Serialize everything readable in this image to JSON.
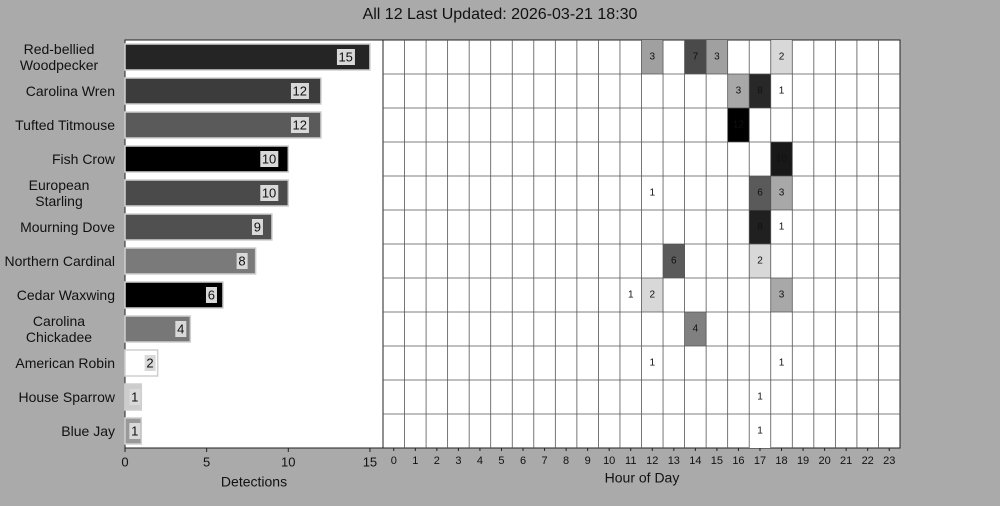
{
  "title": "All 12 Last Updated: 2026-03-21 18:30",
  "chart_data": [
    {
      "type": "hbar",
      "x_label": "Detections",
      "categories": [
        "Red-bellied Woodpecker",
        "Carolina Wren",
        "Tufted Titmouse",
        "Fish Crow",
        "European Starling",
        "Mourning Dove",
        "Northern Cardinal",
        "Cedar Waxwing",
        "Carolina Chickadee",
        "American Robin",
        "House Sparrow",
        "Blue Jay"
      ],
      "values": [
        15,
        12,
        12,
        10,
        10,
        9,
        8,
        6,
        4,
        2,
        1,
        1
      ],
      "colors": [
        "#252525",
        "#3c3c3c",
        "#5a5a5a",
        "#000000",
        "#4a4a4a",
        "#505050",
        "#7a7a7a",
        "#000000",
        "#777777",
        "#ffffff",
        "#cccccc",
        "#999999"
      ],
      "xlim": [
        0,
        15.8
      ],
      "xticks": [
        0,
        5,
        10,
        15
      ]
    },
    {
      "type": "heatmap",
      "x_label": "Hour of Day",
      "xticks": [
        0,
        1,
        2,
        3,
        4,
        5,
        6,
        7,
        8,
        9,
        10,
        11,
        12,
        13,
        14,
        15,
        16,
        17,
        18,
        19,
        20,
        21,
        22,
        23
      ],
      "highlighted_hour": 18,
      "rows": [
        [
          {
            "hour": 12,
            "value": 3,
            "color": "#a0a0a0"
          },
          {
            "hour": 14,
            "value": 7,
            "color": "#4a4a4a"
          },
          {
            "hour": 15,
            "value": 3,
            "color": "#a0a0a0"
          },
          {
            "hour": 18,
            "value": 2,
            "color": "#d8d8d8"
          }
        ],
        [
          {
            "hour": 16,
            "value": 3,
            "color": "#a8a8a8"
          },
          {
            "hour": 17,
            "value": 8,
            "color": "#282828"
          },
          {
            "hour": 18,
            "value": 1,
            "color": "#ffffff"
          }
        ],
        [
          {
            "hour": 16,
            "value": 12,
            "color": "#000000"
          }
        ],
        [
          {
            "hour": 18,
            "value": 10,
            "color": "#181818"
          }
        ],
        [
          {
            "hour": 12,
            "value": 1,
            "color": "#ffffff"
          },
          {
            "hour": 17,
            "value": 6,
            "color": "#5a5a5a"
          },
          {
            "hour": 18,
            "value": 3,
            "color": "#a8a8a8"
          }
        ],
        [
          {
            "hour": 17,
            "value": 8,
            "color": "#202020"
          },
          {
            "hour": 18,
            "value": 1,
            "color": "#ffffff"
          }
        ],
        [
          {
            "hour": 13,
            "value": 6,
            "color": "#5a5a5a"
          },
          {
            "hour": 17,
            "value": 2,
            "color": "#d8d8d8"
          }
        ],
        [
          {
            "hour": 11,
            "value": 1,
            "color": "#ffffff"
          },
          {
            "hour": 12,
            "value": 2,
            "color": "#d8d8d8"
          },
          {
            "hour": 18,
            "value": 3,
            "color": "#a8a8a8"
          }
        ],
        [
          {
            "hour": 14,
            "value": 4,
            "color": "#808080"
          }
        ],
        [
          {
            "hour": 12,
            "value": 1,
            "color": "#ffffff"
          },
          {
            "hour": 18,
            "value": 1,
            "color": "#ffffff"
          }
        ],
        [
          {
            "hour": 17,
            "value": 1,
            "color": "#ffffff"
          }
        ],
        [
          {
            "hour": 17,
            "value": 1,
            "color": "#ffffff"
          }
        ]
      ]
    }
  ]
}
